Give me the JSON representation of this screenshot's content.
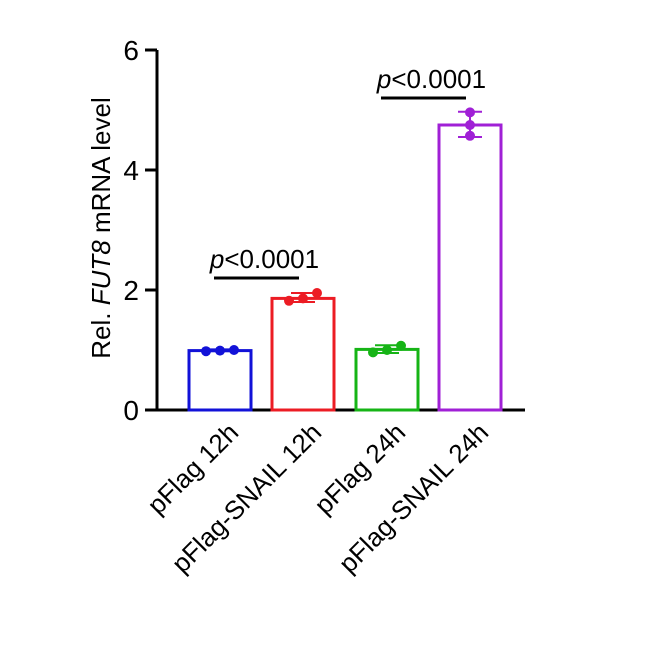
{
  "chart_data": {
    "type": "bar",
    "categories": [
      "pFlag 12h",
      "pFlag-SNAIL 12h",
      "pFlag 24h",
      "pFlag-SNAIL 24h"
    ],
    "values": [
      0.99,
      1.86,
      1.01,
      4.75
    ],
    "points": [
      [
        0.98,
        0.99,
        1.0
      ],
      [
        1.82,
        1.86,
        1.95
      ],
      [
        0.96,
        1.0,
        1.07
      ],
      [
        4.57,
        4.75,
        4.96
      ]
    ],
    "error": [
      [
        0.98,
        1.01
      ],
      [
        1.8,
        1.95
      ],
      [
        0.95,
        1.08
      ],
      [
        4.55,
        4.97
      ]
    ],
    "colors": [
      "#1212d8",
      "#ec1c24",
      "#16b416",
      "#a020d6"
    ],
    "ylim": [
      0,
      6
    ],
    "yticks": [
      "0",
      "2",
      "4",
      "6"
    ],
    "ylabel": {
      "prefix": "Rel. ",
      "gene": "FUT8",
      "suffix": " mRNA  level"
    },
    "annotations": [
      {
        "from": 0,
        "to": 1,
        "italic": "p",
        "text": "<0.0001",
        "y": 2.2
      },
      {
        "from": 2,
        "to": 3,
        "italic": "p",
        "text": "<0.0001",
        "y": 5.2
      }
    ]
  }
}
